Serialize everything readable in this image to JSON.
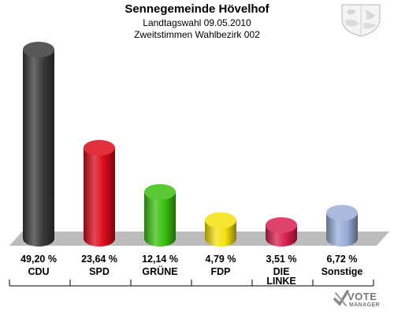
{
  "header": {
    "title": "Sennegemeinde Hövelhof",
    "subtitle1": "Landtagswahl 09.05.2010",
    "subtitle2": "Zweitstimmen Wahlbezirk 002"
  },
  "logo": {
    "line1": "VOTE",
    "line2": "MANAGER"
  },
  "colors": {
    "CDU": "#3a3a3a",
    "SPD": "#dc0a1a",
    "GRÜNE": "#3cc010",
    "FDP": "#f5e010",
    "DIE LINKE": "#d8204e",
    "Sonstige": "#9aaed8",
    "floor": "#bcbcbc"
  },
  "chart_data": {
    "type": "bar",
    "categories": [
      "CDU",
      "SPD",
      "GRÜNE",
      "FDP",
      "DIE LINKE",
      "Sonstige"
    ],
    "category_lines": [
      [
        "CDU"
      ],
      [
        "SPD"
      ],
      [
        "GRÜNE"
      ],
      [
        "FDP"
      ],
      [
        "DIE",
        "LINKE"
      ],
      [
        "Sonstige"
      ]
    ],
    "values": [
      49.2,
      23.64,
      12.14,
      4.79,
      3.51,
      6.72
    ],
    "value_labels": [
      "49,20 %",
      "23,64 %",
      "12,14 %",
      "4,79 %",
      "3,51 %",
      "6,72 %"
    ],
    "title": "Sennegemeinde Hövelhof",
    "xlabel": "",
    "ylabel": "",
    "grid": false,
    "legend": "none"
  }
}
